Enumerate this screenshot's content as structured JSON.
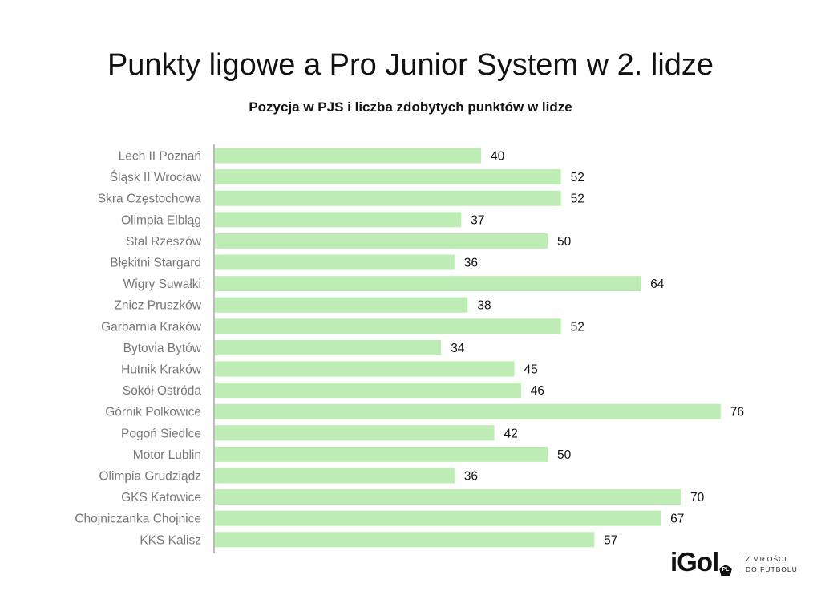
{
  "chart_data": {
    "type": "bar",
    "orientation": "horizontal",
    "title": "Punkty ligowe a Pro Junior System w 2. lidze",
    "subtitle": "Pozycja w PJS i liczba zdobytych punktów w lidze",
    "categories": [
      "Lech II Poznań",
      "Śląsk II Wrocław",
      "Skra Częstochowa",
      "Olimpia Elbląg",
      "Stal Rzeszów",
      "Błękitni Stargard",
      "Wigry Suwałki",
      "Znicz Pruszków",
      "Garbarnia Kraków",
      "Bytovia Bytów",
      "Hutnik Kraków",
      "Sokół Ostróda",
      "Górnik Polkowice",
      "Pogoń Siedlce",
      "Motor Lublin",
      "Olimpia Grudziądz",
      "GKS Katowice",
      "Chojniczanka Chojnice",
      "KKS Kalisz"
    ],
    "values": [
      40,
      52,
      52,
      37,
      50,
      36,
      64,
      38,
      52,
      34,
      45,
      46,
      76,
      42,
      50,
      36,
      70,
      67,
      57
    ],
    "xlim": [
      0,
      90
    ],
    "grid": false,
    "bar_color": "#bdedb4"
  },
  "logo": {
    "brand": "iGol",
    "badge": "PL",
    "tagline_1": "Z MIŁOŚCI",
    "tagline_2": "DO FUTBOLU"
  }
}
